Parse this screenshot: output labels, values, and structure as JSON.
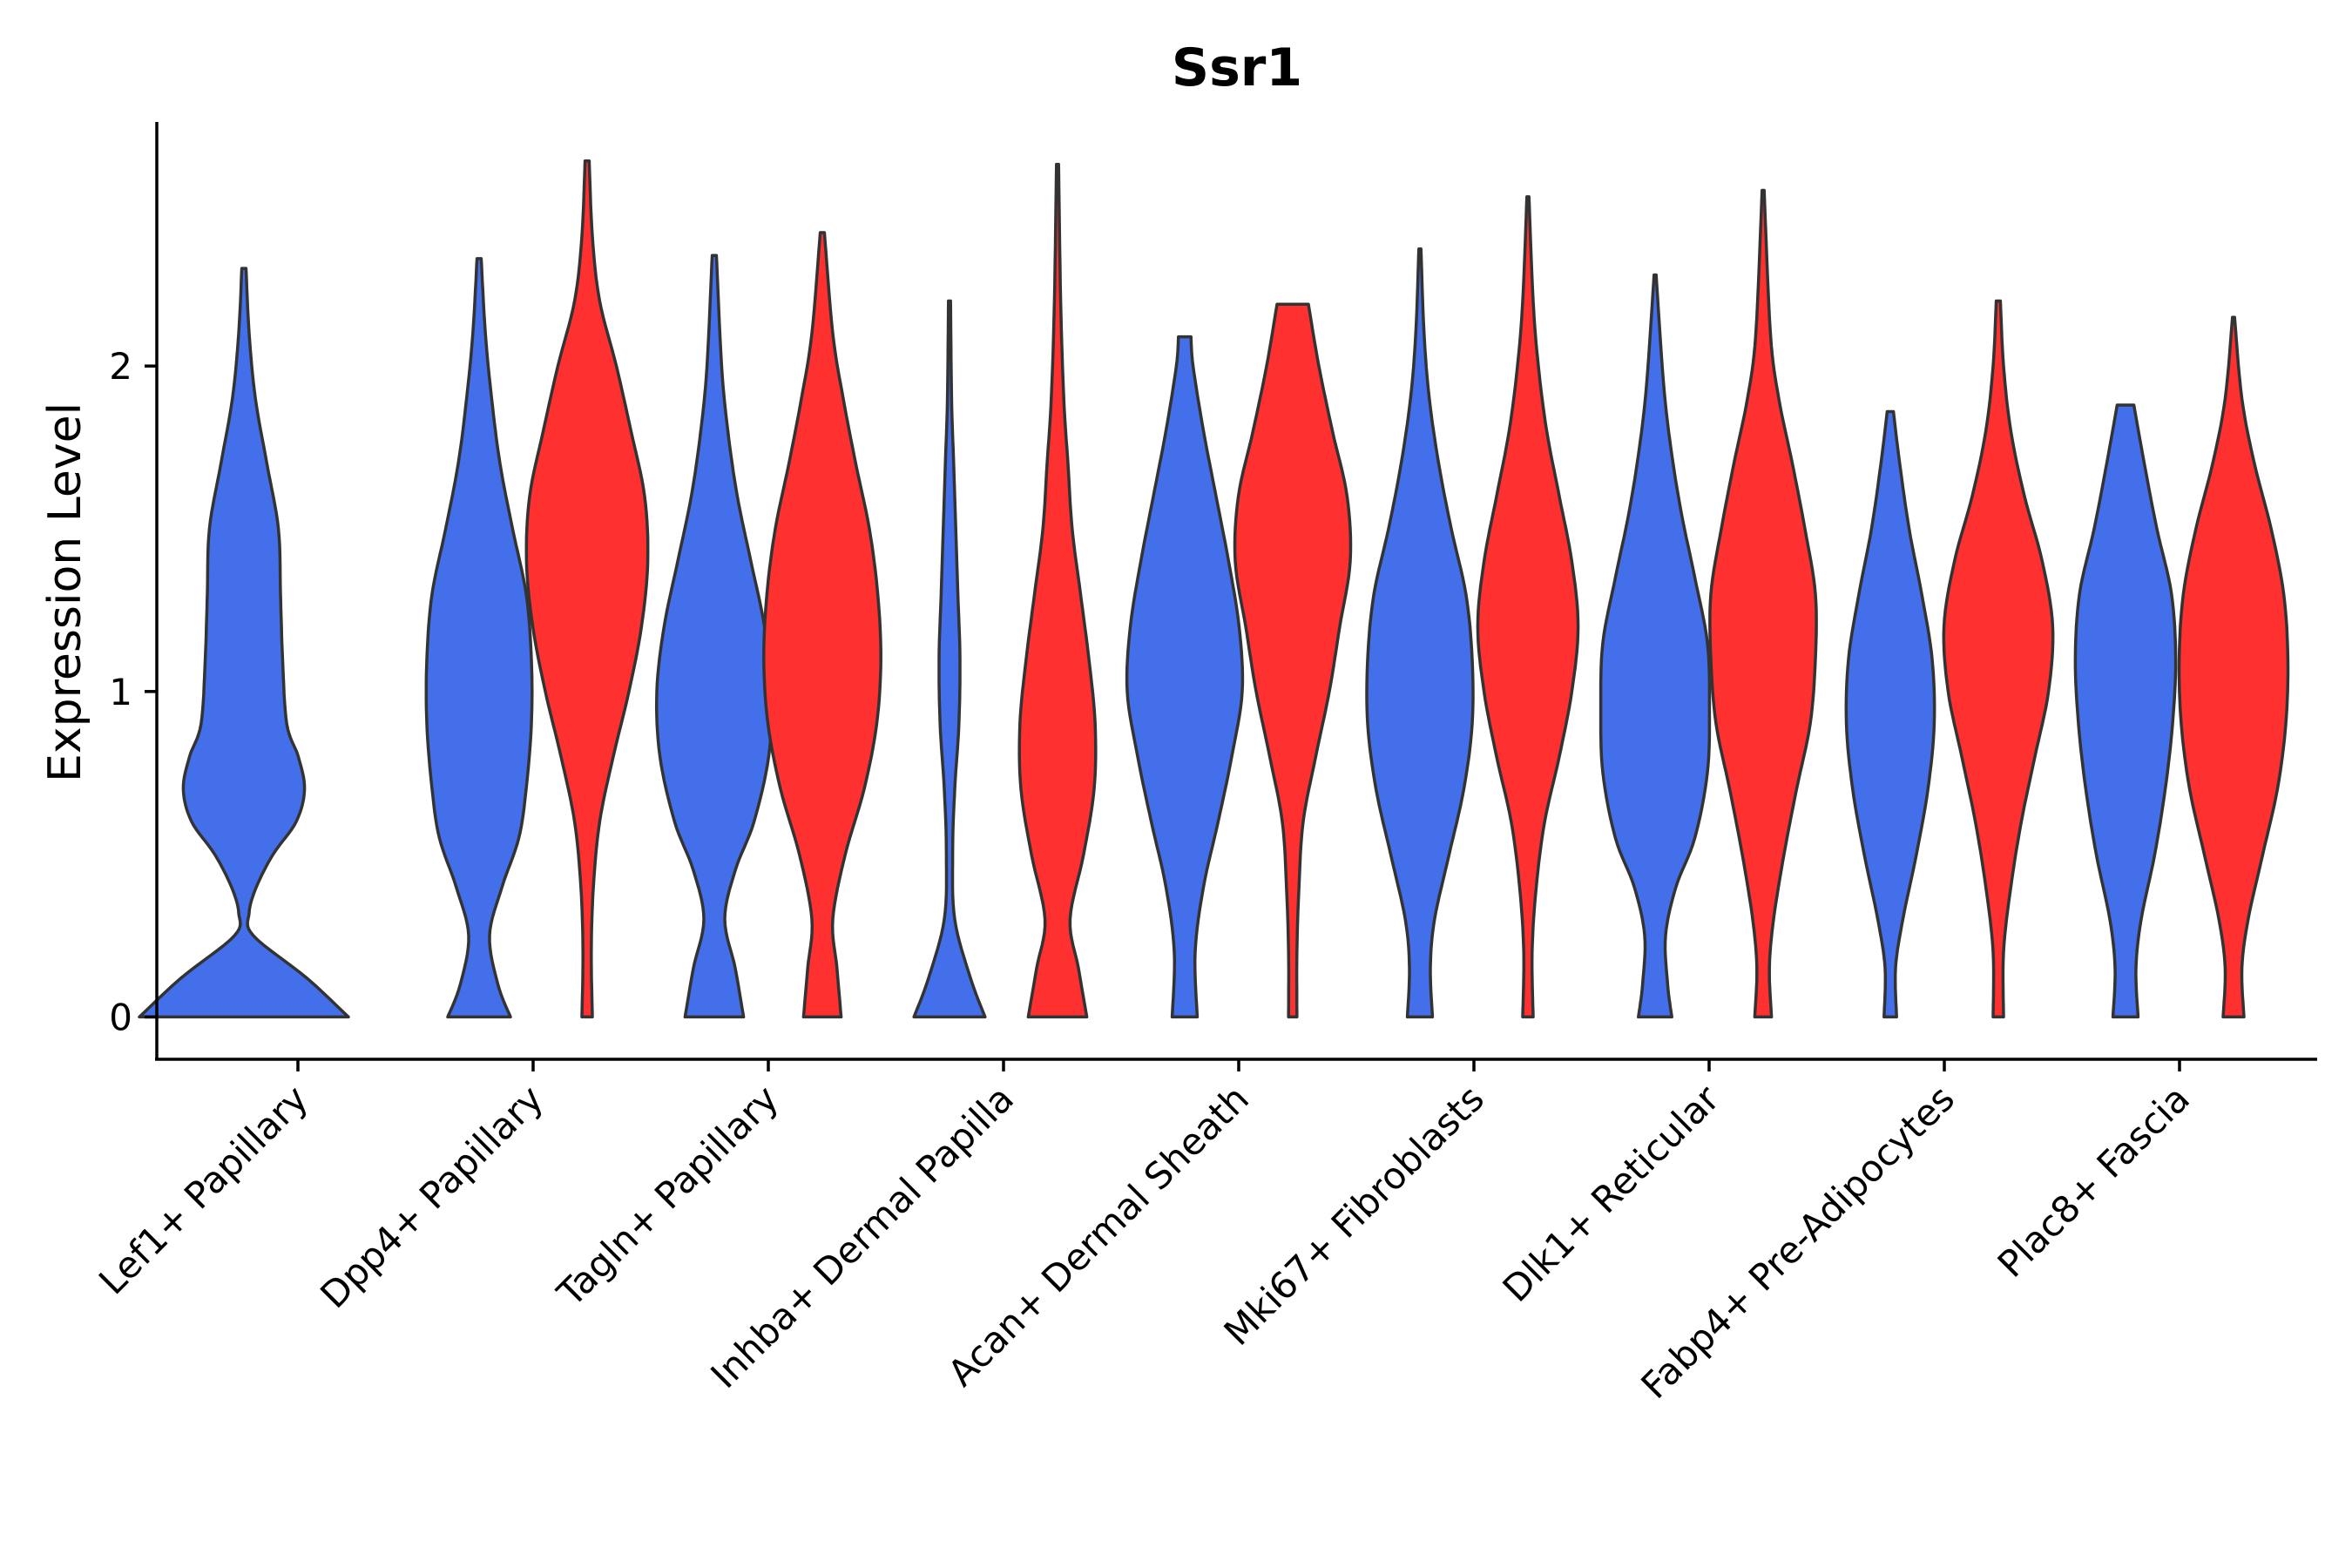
{
  "chart_data": {
    "type": "violin",
    "title": "Ssr1",
    "xlabel": "",
    "ylabel": "Expression Level",
    "ylim": [
      -0.13,
      2.75
    ],
    "yticks": [
      0,
      1,
      2
    ],
    "grid": false,
    "legend": "none",
    "colors": {
      "group1": "#4370EA",
      "group2": "#FF3030",
      "outline": "#333333"
    },
    "categories": [
      "Lef1+ Papillary",
      "Dpp4+ Papillary",
      "Tagln+ Papillary",
      "Inhba+ Dermal Papilla",
      "Acan+ Dermal Sheath",
      "Mki67+ Fibroblasts",
      "Dlk1+ Reticular",
      "Fabp4+ Pre-Adipocytes",
      "Plac8+ Fascia"
    ],
    "violins": [
      {
        "category": 0,
        "group": 1,
        "max": 2.3,
        "profile": [
          [
            0,
            1.0
          ],
          [
            0.12,
            0.6
          ],
          [
            0.25,
            0.09
          ],
          [
            0.32,
            0.05
          ],
          [
            0.4,
            0.12
          ],
          [
            0.5,
            0.28
          ],
          [
            0.6,
            0.5
          ],
          [
            0.7,
            0.58
          ],
          [
            0.8,
            0.52
          ],
          [
            0.9,
            0.41
          ],
          [
            1.1,
            0.37
          ],
          [
            1.3,
            0.35
          ],
          [
            1.5,
            0.33
          ],
          [
            1.7,
            0.22
          ],
          [
            1.9,
            0.11
          ],
          [
            2.1,
            0.05
          ],
          [
            2.3,
            0.02
          ]
        ]
      },
      {
        "category": 1,
        "group": 1,
        "max": 2.33,
        "profile": [
          [
            0,
            0.3
          ],
          [
            0.1,
            0.18
          ],
          [
            0.25,
            0.1
          ],
          [
            0.4,
            0.22
          ],
          [
            0.55,
            0.38
          ],
          [
            0.7,
            0.45
          ],
          [
            0.9,
            0.5
          ],
          [
            1.1,
            0.5
          ],
          [
            1.3,
            0.45
          ],
          [
            1.5,
            0.32
          ],
          [
            1.7,
            0.2
          ],
          [
            1.9,
            0.12
          ],
          [
            2.1,
            0.06
          ],
          [
            2.33,
            0.02
          ]
        ]
      },
      {
        "category": 1,
        "group": 2,
        "max": 2.63,
        "profile": [
          [
            0,
            0.05
          ],
          [
            0.2,
            0.04
          ],
          [
            0.4,
            0.06
          ],
          [
            0.6,
            0.12
          ],
          [
            0.8,
            0.25
          ],
          [
            1.0,
            0.4
          ],
          [
            1.2,
            0.52
          ],
          [
            1.4,
            0.58
          ],
          [
            1.6,
            0.55
          ],
          [
            1.8,
            0.42
          ],
          [
            2.0,
            0.28
          ],
          [
            2.2,
            0.12
          ],
          [
            2.4,
            0.05
          ],
          [
            2.63,
            0.02
          ]
        ]
      },
      {
        "category": 2,
        "group": 1,
        "max": 2.34,
        "profile": [
          [
            0,
            0.28
          ],
          [
            0.15,
            0.2
          ],
          [
            0.3,
            0.1
          ],
          [
            0.45,
            0.2
          ],
          [
            0.6,
            0.38
          ],
          [
            0.8,
            0.52
          ],
          [
            1.0,
            0.55
          ],
          [
            1.2,
            0.48
          ],
          [
            1.4,
            0.35
          ],
          [
            1.6,
            0.22
          ],
          [
            1.8,
            0.13
          ],
          [
            2.0,
            0.07
          ],
          [
            2.34,
            0.02
          ]
        ]
      },
      {
        "category": 2,
        "group": 2,
        "max": 2.41,
        "profile": [
          [
            0,
            0.18
          ],
          [
            0.15,
            0.14
          ],
          [
            0.3,
            0.1
          ],
          [
            0.5,
            0.22
          ],
          [
            0.7,
            0.4
          ],
          [
            0.9,
            0.52
          ],
          [
            1.1,
            0.56
          ],
          [
            1.3,
            0.53
          ],
          [
            1.5,
            0.45
          ],
          [
            1.7,
            0.32
          ],
          [
            1.9,
            0.2
          ],
          [
            2.1,
            0.1
          ],
          [
            2.41,
            0.02
          ]
        ]
      },
      {
        "category": 3,
        "group": 1,
        "max": 2.2,
        "profile": [
          [
            0,
            0.34
          ],
          [
            0.12,
            0.2
          ],
          [
            0.3,
            0.05
          ],
          [
            0.5,
            0.03
          ],
          [
            0.7,
            0.05
          ],
          [
            0.9,
            0.09
          ],
          [
            1.1,
            0.1
          ],
          [
            1.3,
            0.08
          ],
          [
            1.5,
            0.06
          ],
          [
            1.7,
            0.04
          ],
          [
            1.9,
            0.02
          ],
          [
            2.2,
            0.01
          ]
        ]
      },
      {
        "category": 3,
        "group": 2,
        "max": 2.62,
        "profile": [
          [
            0,
            0.28
          ],
          [
            0.15,
            0.2
          ],
          [
            0.3,
            0.12
          ],
          [
            0.5,
            0.25
          ],
          [
            0.7,
            0.35
          ],
          [
            0.9,
            0.36
          ],
          [
            1.1,
            0.3
          ],
          [
            1.3,
            0.22
          ],
          [
            1.5,
            0.14
          ],
          [
            1.7,
            0.1
          ],
          [
            1.9,
            0.06
          ],
          [
            2.2,
            0.03
          ],
          [
            2.62,
            0.01
          ]
        ]
      },
      {
        "category": 4,
        "group": 1,
        "max": 2.09,
        "profile": [
          [
            0,
            0.12
          ],
          [
            0.2,
            0.1
          ],
          [
            0.4,
            0.18
          ],
          [
            0.6,
            0.32
          ],
          [
            0.8,
            0.45
          ],
          [
            1.0,
            0.55
          ],
          [
            1.2,
            0.52
          ],
          [
            1.4,
            0.42
          ],
          [
            1.6,
            0.3
          ],
          [
            1.8,
            0.18
          ],
          [
            2.0,
            0.08
          ],
          [
            2.09,
            0.06
          ]
        ]
      },
      {
        "category": 4,
        "group": 2,
        "max": 2.19,
        "profile": [
          [
            0,
            0.04
          ],
          [
            0.2,
            0.04
          ],
          [
            0.4,
            0.06
          ],
          [
            0.6,
            0.1
          ],
          [
            0.8,
            0.22
          ],
          [
            1.0,
            0.35
          ],
          [
            1.2,
            0.45
          ],
          [
            1.4,
            0.55
          ],
          [
            1.6,
            0.52
          ],
          [
            1.8,
            0.38
          ],
          [
            2.0,
            0.25
          ],
          [
            2.19,
            0.15
          ]
        ]
      },
      {
        "category": 5,
        "group": 1,
        "max": 2.36,
        "profile": [
          [
            0,
            0.12
          ],
          [
            0.15,
            0.1
          ],
          [
            0.3,
            0.14
          ],
          [
            0.5,
            0.28
          ],
          [
            0.7,
            0.42
          ],
          [
            0.9,
            0.5
          ],
          [
            1.1,
            0.5
          ],
          [
            1.3,
            0.44
          ],
          [
            1.5,
            0.3
          ],
          [
            1.7,
            0.18
          ],
          [
            1.9,
            0.09
          ],
          [
            2.1,
            0.04
          ],
          [
            2.36,
            0.01
          ]
        ]
      },
      {
        "category": 5,
        "group": 2,
        "max": 2.52,
        "profile": [
          [
            0,
            0.05
          ],
          [
            0.2,
            0.04
          ],
          [
            0.4,
            0.08
          ],
          [
            0.6,
            0.16
          ],
          [
            0.8,
            0.3
          ],
          [
            1.0,
            0.42
          ],
          [
            1.2,
            0.48
          ],
          [
            1.4,
            0.42
          ],
          [
            1.6,
            0.3
          ],
          [
            1.8,
            0.18
          ],
          [
            2.0,
            0.1
          ],
          [
            2.2,
            0.05
          ],
          [
            2.52,
            0.01
          ]
        ]
      },
      {
        "category": 6,
        "group": 1,
        "max": 2.28,
        "profile": [
          [
            0,
            0.16
          ],
          [
            0.1,
            0.12
          ],
          [
            0.25,
            0.1
          ],
          [
            0.4,
            0.2
          ],
          [
            0.55,
            0.38
          ],
          [
            0.75,
            0.5
          ],
          [
            0.95,
            0.52
          ],
          [
            1.15,
            0.5
          ],
          [
            1.35,
            0.38
          ],
          [
            1.55,
            0.25
          ],
          [
            1.75,
            0.15
          ],
          [
            1.95,
            0.08
          ],
          [
            2.28,
            0.01
          ]
        ]
      },
      {
        "category": 6,
        "group": 2,
        "max": 2.54,
        "profile": [
          [
            0,
            0.08
          ],
          [
            0.15,
            0.06
          ],
          [
            0.3,
            0.1
          ],
          [
            0.5,
            0.2
          ],
          [
            0.7,
            0.32
          ],
          [
            0.9,
            0.45
          ],
          [
            1.1,
            0.5
          ],
          [
            1.3,
            0.5
          ],
          [
            1.5,
            0.4
          ],
          [
            1.7,
            0.28
          ],
          [
            1.9,
            0.15
          ],
          [
            2.1,
            0.07
          ],
          [
            2.54,
            0.01
          ]
        ]
      },
      {
        "category": 7,
        "group": 1,
        "max": 1.86,
        "profile": [
          [
            0,
            0.06
          ],
          [
            0.15,
            0.05
          ],
          [
            0.3,
            0.12
          ],
          [
            0.5,
            0.25
          ],
          [
            0.7,
            0.36
          ],
          [
            0.9,
            0.42
          ],
          [
            1.1,
            0.4
          ],
          [
            1.3,
            0.3
          ],
          [
            1.5,
            0.18
          ],
          [
            1.7,
            0.09
          ],
          [
            1.86,
            0.03
          ]
        ]
      },
      {
        "category": 7,
        "group": 2,
        "max": 2.2,
        "profile": [
          [
            0,
            0.05
          ],
          [
            0.2,
            0.05
          ],
          [
            0.4,
            0.12
          ],
          [
            0.6,
            0.22
          ],
          [
            0.8,
            0.35
          ],
          [
            1.0,
            0.48
          ],
          [
            1.2,
            0.52
          ],
          [
            1.4,
            0.42
          ],
          [
            1.6,
            0.25
          ],
          [
            1.8,
            0.12
          ],
          [
            2.0,
            0.05
          ],
          [
            2.2,
            0.02
          ]
        ]
      },
      {
        "category": 8,
        "group": 1,
        "max": 1.88,
        "profile": [
          [
            0,
            0.12
          ],
          [
            0.15,
            0.1
          ],
          [
            0.3,
            0.15
          ],
          [
            0.5,
            0.28
          ],
          [
            0.7,
            0.38
          ],
          [
            0.9,
            0.45
          ],
          [
            1.1,
            0.48
          ],
          [
            1.3,
            0.44
          ],
          [
            1.5,
            0.3
          ],
          [
            1.7,
            0.18
          ],
          [
            1.88,
            0.08
          ]
        ]
      },
      {
        "category": 8,
        "group": 2,
        "max": 2.15,
        "profile": [
          [
            0,
            0.1
          ],
          [
            0.15,
            0.08
          ],
          [
            0.3,
            0.14
          ],
          [
            0.5,
            0.28
          ],
          [
            0.7,
            0.42
          ],
          [
            0.9,
            0.5
          ],
          [
            1.1,
            0.52
          ],
          [
            1.3,
            0.48
          ],
          [
            1.5,
            0.36
          ],
          [
            1.7,
            0.2
          ],
          [
            1.9,
            0.08
          ],
          [
            2.15,
            0.01
          ]
        ]
      }
    ]
  }
}
